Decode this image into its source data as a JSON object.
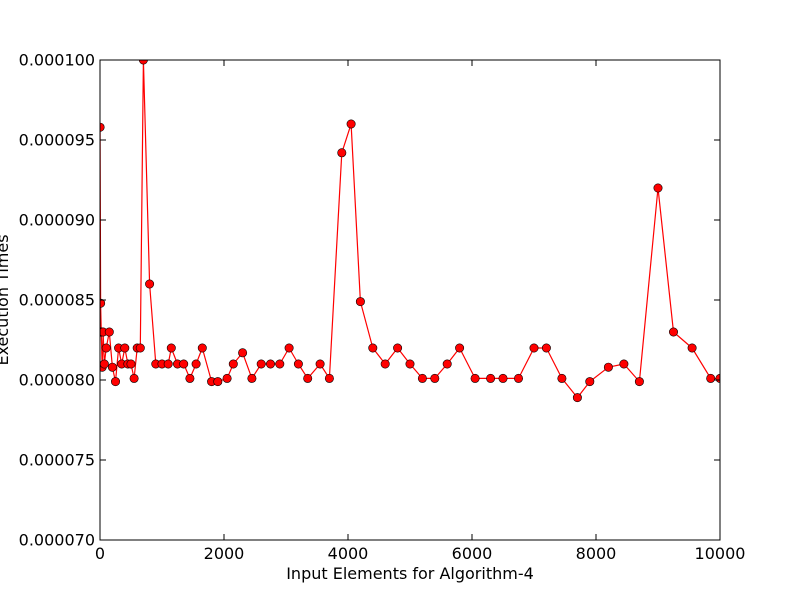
{
  "chart_data": {
    "type": "line",
    "title": "",
    "xlabel": "Input Elements for Algorithm-4",
    "ylabel": "Execution Times",
    "xlim": [
      0,
      10000
    ],
    "ylim": [
      7e-05,
      0.0001
    ],
    "xticks": [
      0,
      2000,
      4000,
      6000,
      8000,
      10000
    ],
    "xtick_labels": [
      "0",
      "2000",
      "4000",
      "6000",
      "8000",
      "10000"
    ],
    "yticks": [
      7e-05,
      7.5e-05,
      8e-05,
      8.5e-05,
      9e-05,
      9.5e-05,
      0.0001
    ],
    "ytick_labels": [
      "0.000070",
      "0.000075",
      "0.000080",
      "0.000085",
      "0.000090",
      "0.000095",
      "0.000100"
    ],
    "grid": false,
    "legend": "none",
    "colors": {
      "line": "#ff0000",
      "marker_fill": "#ff0000",
      "marker_edge": "#000000"
    },
    "series": [
      {
        "x": [
          1,
          10,
          20,
          35,
          50,
          70,
          100,
          150,
          200,
          250,
          300,
          350,
          400,
          450,
          500,
          550,
          600,
          650,
          700,
          800,
          900,
          1000,
          1100,
          1150,
          1250,
          1350,
          1450,
          1550,
          1650,
          1800,
          1900,
          2050,
          2150,
          2300,
          2450,
          2600,
          2750,
          2900,
          3050,
          3200,
          3350,
          3550,
          3700,
          3900,
          4050,
          4200,
          4400,
          4600,
          4800,
          5000,
          5200,
          5400,
          5600,
          5800,
          6050,
          6300,
          6500,
          6750,
          7000,
          7200,
          7450,
          7700,
          7900,
          8200,
          8450,
          8700,
          9000,
          9250,
          9550,
          9850,
          10000
        ],
        "y": [
          9.58e-05,
          8.48e-05,
          8.3e-05,
          8.08e-05,
          8.3e-05,
          8.1e-05,
          8.2e-05,
          8.3e-05,
          8.08e-05,
          7.99e-05,
          8.2e-05,
          8.1e-05,
          8.2e-05,
          8.1e-05,
          8.1e-05,
          8.01e-05,
          8.2e-05,
          8.2e-05,
          0.0001,
          8.6e-05,
          8.1e-05,
          8.1e-05,
          8.1e-05,
          8.2e-05,
          8.1e-05,
          8.1e-05,
          8.01e-05,
          8.1e-05,
          8.2e-05,
          7.99e-05,
          7.99e-05,
          8.01e-05,
          8.1e-05,
          8.17e-05,
          8.01e-05,
          8.1e-05,
          8.1e-05,
          8.1e-05,
          8.2e-05,
          8.1e-05,
          8.01e-05,
          8.1e-05,
          8.01e-05,
          9.42e-05,
          9.6e-05,
          8.49e-05,
          8.2e-05,
          8.1e-05,
          8.2e-05,
          8.1e-05,
          8.01e-05,
          8.01e-05,
          8.1e-05,
          8.2e-05,
          8.01e-05,
          8.01e-05,
          8.01e-05,
          8.01e-05,
          8.2e-05,
          8.2e-05,
          8.01e-05,
          7.89e-05,
          7.99e-05,
          8.08e-05,
          8.1e-05,
          7.99e-05,
          9.2e-05,
          8.3e-05,
          8.2e-05,
          8.01e-05,
          8.01e-05
        ]
      }
    ]
  }
}
